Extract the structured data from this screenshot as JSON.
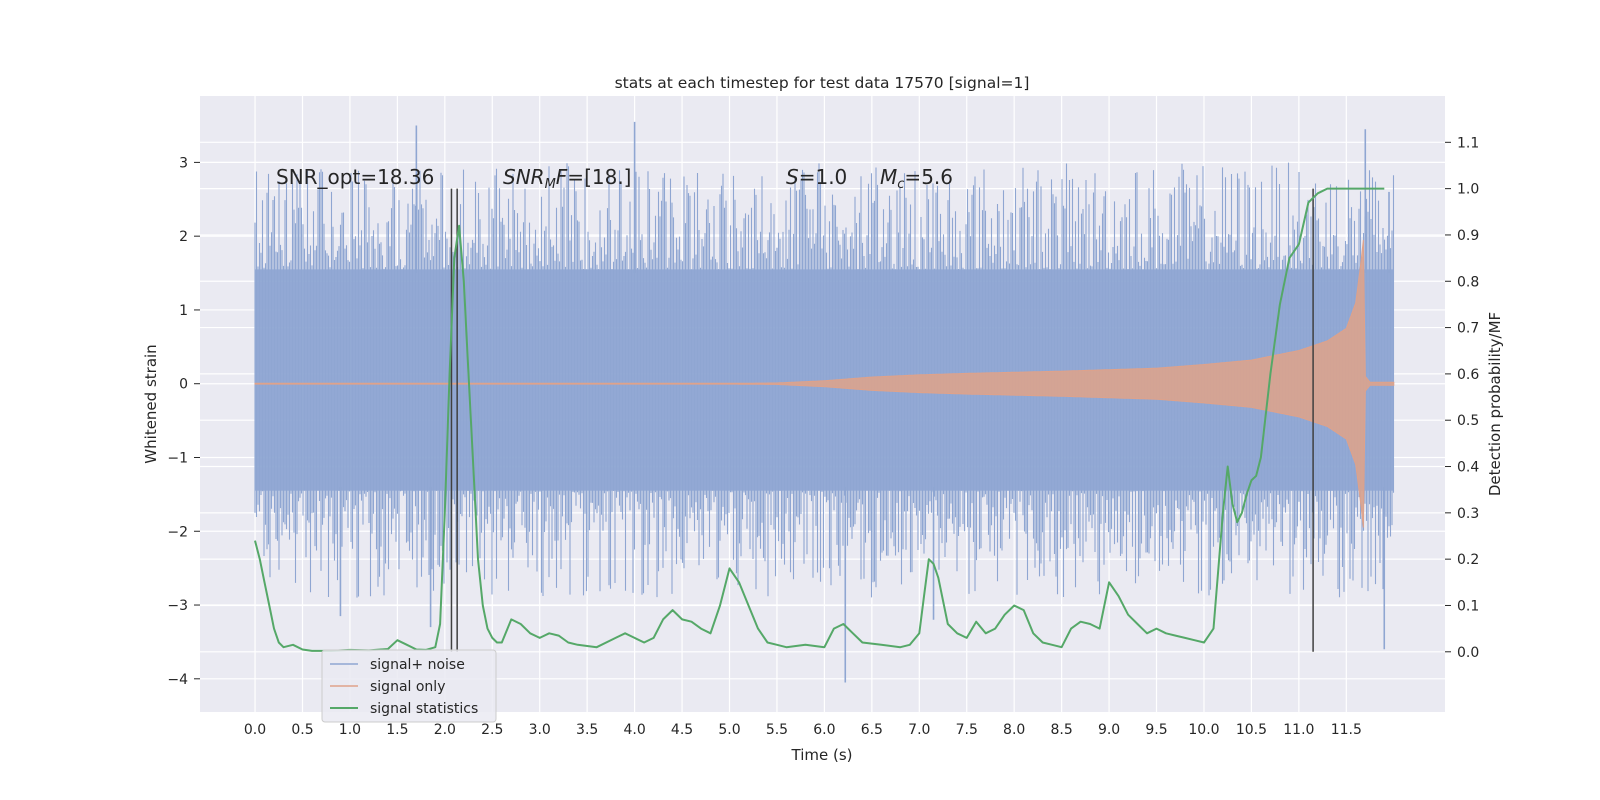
{
  "chart_data": {
    "type": "line",
    "title": "stats at each timestep for test data 17570 [signal=1]",
    "xlabel": "Time (s)",
    "ylabel": "Whitened strain",
    "y2label": "Detection probability/MF",
    "xlim": [
      -0.58,
      12.54
    ],
    "ylim": [
      -4.45,
      3.9
    ],
    "y2lim": [
      -0.13,
      1.2
    ],
    "x_ticks": [
      "0.0",
      "0.5",
      "1.0",
      "1.5",
      "2.0",
      "2.5",
      "3.0",
      "3.5",
      "4.0",
      "4.5",
      "5.0",
      "5.5",
      "6.0",
      "6.5",
      "7.0",
      "7.5",
      "8.0",
      "8.5",
      "9.0",
      "9.5",
      "10.0",
      "10.5",
      "11.0",
      "11.5"
    ],
    "y_ticks": [
      "3",
      "2",
      "1",
      "0",
      "−1",
      "−2",
      "−3",
      "−4"
    ],
    "y_tick_values": [
      3,
      2,
      1,
      0,
      -1,
      -2,
      -3,
      -4
    ],
    "y2_ticks": [
      "1.1",
      "1.0",
      "0.9",
      "0.8",
      "0.7",
      "0.6",
      "0.5",
      "0.4",
      "0.3",
      "0.2",
      "0.1",
      "0.0"
    ],
    "y2_tick_values": [
      1.1,
      1.0,
      0.9,
      0.8,
      0.7,
      0.6,
      0.5,
      0.4,
      0.3,
      0.2,
      0.1,
      0.0
    ],
    "annotations": [
      {
        "label": "SNR_opt",
        "value": "18.36",
        "text": "SNR_opt=18.36"
      },
      {
        "label": "SNR_MF",
        "value": "[18.]"
      },
      {
        "label": "S",
        "value": "1.0"
      },
      {
        "label": "M_c",
        "value": "5.6"
      }
    ],
    "vertical_lines": [
      2.07,
      2.13,
      11.15
    ],
    "series": [
      {
        "name": "signal+ noise",
        "color": "#8fa6d2",
        "axis": "left",
        "description": "whitened noisy strain, 0 to 12 s",
        "x_range": [
          0,
          12
        ],
        "envelope_hi": 2.4,
        "envelope_lo": -2.3,
        "extreme_peaks": [
          {
            "x": 1.7,
            "y": 3.5
          },
          {
            "x": 4.0,
            "y": 3.55
          },
          {
            "x": 11.7,
            "y": 3.45
          },
          {
            "x": 6.22,
            "y": -4.05
          },
          {
            "x": 11.9,
            "y": -3.6
          },
          {
            "x": 0.9,
            "y": -3.15
          },
          {
            "x": 7.15,
            "y": -3.2
          },
          {
            "x": 1.85,
            "y": -3.3
          },
          {
            "x": 11.95,
            "y": 2.6
          }
        ]
      },
      {
        "name": "signal only",
        "color": "#dfa28a",
        "axis": "left",
        "description": "chirp waveform growing towards merger",
        "x": [
          0.0,
          5.0,
          5.5,
          6.0,
          6.5,
          7.0,
          7.5,
          8.0,
          8.5,
          9.0,
          9.5,
          10.0,
          10.5,
          11.0,
          11.3,
          11.5,
          11.6,
          11.65,
          11.68,
          11.7,
          11.75,
          12.0
        ],
        "amplitude": [
          0.005,
          0.005,
          0.01,
          0.04,
          0.09,
          0.12,
          0.14,
          0.155,
          0.17,
          0.19,
          0.21,
          0.26,
          0.32,
          0.45,
          0.58,
          0.75,
          1.1,
          1.6,
          1.95,
          0.1,
          0.02,
          0.02
        ]
      },
      {
        "name": "signal statistics",
        "color": "#55a868",
        "axis": "right",
        "x": [
          0.0,
          0.05,
          0.1,
          0.15,
          0.2,
          0.25,
          0.3,
          0.4,
          0.5,
          0.6,
          0.8,
          1.0,
          1.2,
          1.4,
          1.5,
          1.6,
          1.7,
          1.8,
          1.9,
          1.95,
          2.0,
          2.05,
          2.1,
          2.15,
          2.2,
          2.25,
          2.3,
          2.35,
          2.4,
          2.45,
          2.5,
          2.55,
          2.6,
          2.7,
          2.8,
          2.9,
          3.0,
          3.1,
          3.2,
          3.3,
          3.4,
          3.6,
          3.8,
          3.9,
          4.0,
          4.1,
          4.2,
          4.3,
          4.4,
          4.5,
          4.6,
          4.7,
          4.8,
          4.9,
          5.0,
          5.1,
          5.2,
          5.3,
          5.4,
          5.5,
          5.6,
          5.8,
          6.0,
          6.1,
          6.2,
          6.3,
          6.4,
          6.6,
          6.8,
          6.9,
          7.0,
          7.05,
          7.1,
          7.15,
          7.2,
          7.3,
          7.4,
          7.5,
          7.6,
          7.7,
          7.8,
          7.9,
          8.0,
          8.1,
          8.2,
          8.3,
          8.4,
          8.5,
          8.6,
          8.7,
          8.8,
          8.9,
          9.0,
          9.1,
          9.2,
          9.3,
          9.4,
          9.5,
          9.6,
          9.7,
          9.8,
          9.9,
          10.0,
          10.1,
          10.2,
          10.25,
          10.3,
          10.35,
          10.4,
          10.45,
          10.5,
          10.55,
          10.6,
          10.7,
          10.8,
          10.9,
          11.0,
          11.1,
          11.2,
          11.3,
          11.4,
          11.5,
          11.6,
          11.7,
          11.8,
          11.9
        ],
        "values": [
          0.24,
          0.2,
          0.15,
          0.1,
          0.05,
          0.02,
          0.01,
          0.015,
          0.005,
          0.002,
          0.002,
          0.004,
          0.003,
          0.006,
          0.025,
          0.015,
          0.005,
          0.004,
          0.01,
          0.06,
          0.3,
          0.6,
          0.85,
          0.92,
          0.8,
          0.6,
          0.4,
          0.2,
          0.1,
          0.05,
          0.03,
          0.02,
          0.02,
          0.07,
          0.06,
          0.04,
          0.03,
          0.04,
          0.035,
          0.02,
          0.015,
          0.01,
          0.03,
          0.04,
          0.03,
          0.02,
          0.03,
          0.07,
          0.09,
          0.07,
          0.065,
          0.05,
          0.04,
          0.1,
          0.18,
          0.15,
          0.1,
          0.05,
          0.02,
          0.015,
          0.01,
          0.015,
          0.01,
          0.05,
          0.06,
          0.04,
          0.02,
          0.015,
          0.01,
          0.015,
          0.04,
          0.12,
          0.2,
          0.19,
          0.16,
          0.06,
          0.04,
          0.03,
          0.065,
          0.04,
          0.05,
          0.08,
          0.1,
          0.09,
          0.04,
          0.02,
          0.015,
          0.01,
          0.05,
          0.065,
          0.06,
          0.05,
          0.15,
          0.12,
          0.08,
          0.06,
          0.04,
          0.05,
          0.04,
          0.035,
          0.03,
          0.025,
          0.02,
          0.05,
          0.3,
          0.4,
          0.32,
          0.28,
          0.3,
          0.34,
          0.37,
          0.38,
          0.42,
          0.6,
          0.75,
          0.85,
          0.88,
          0.97,
          0.99,
          1.0,
          1.0,
          1.0,
          1.0,
          1.0,
          1.0,
          1.0
        ]
      }
    ],
    "legend_position": "lower-left",
    "grid": true
  }
}
